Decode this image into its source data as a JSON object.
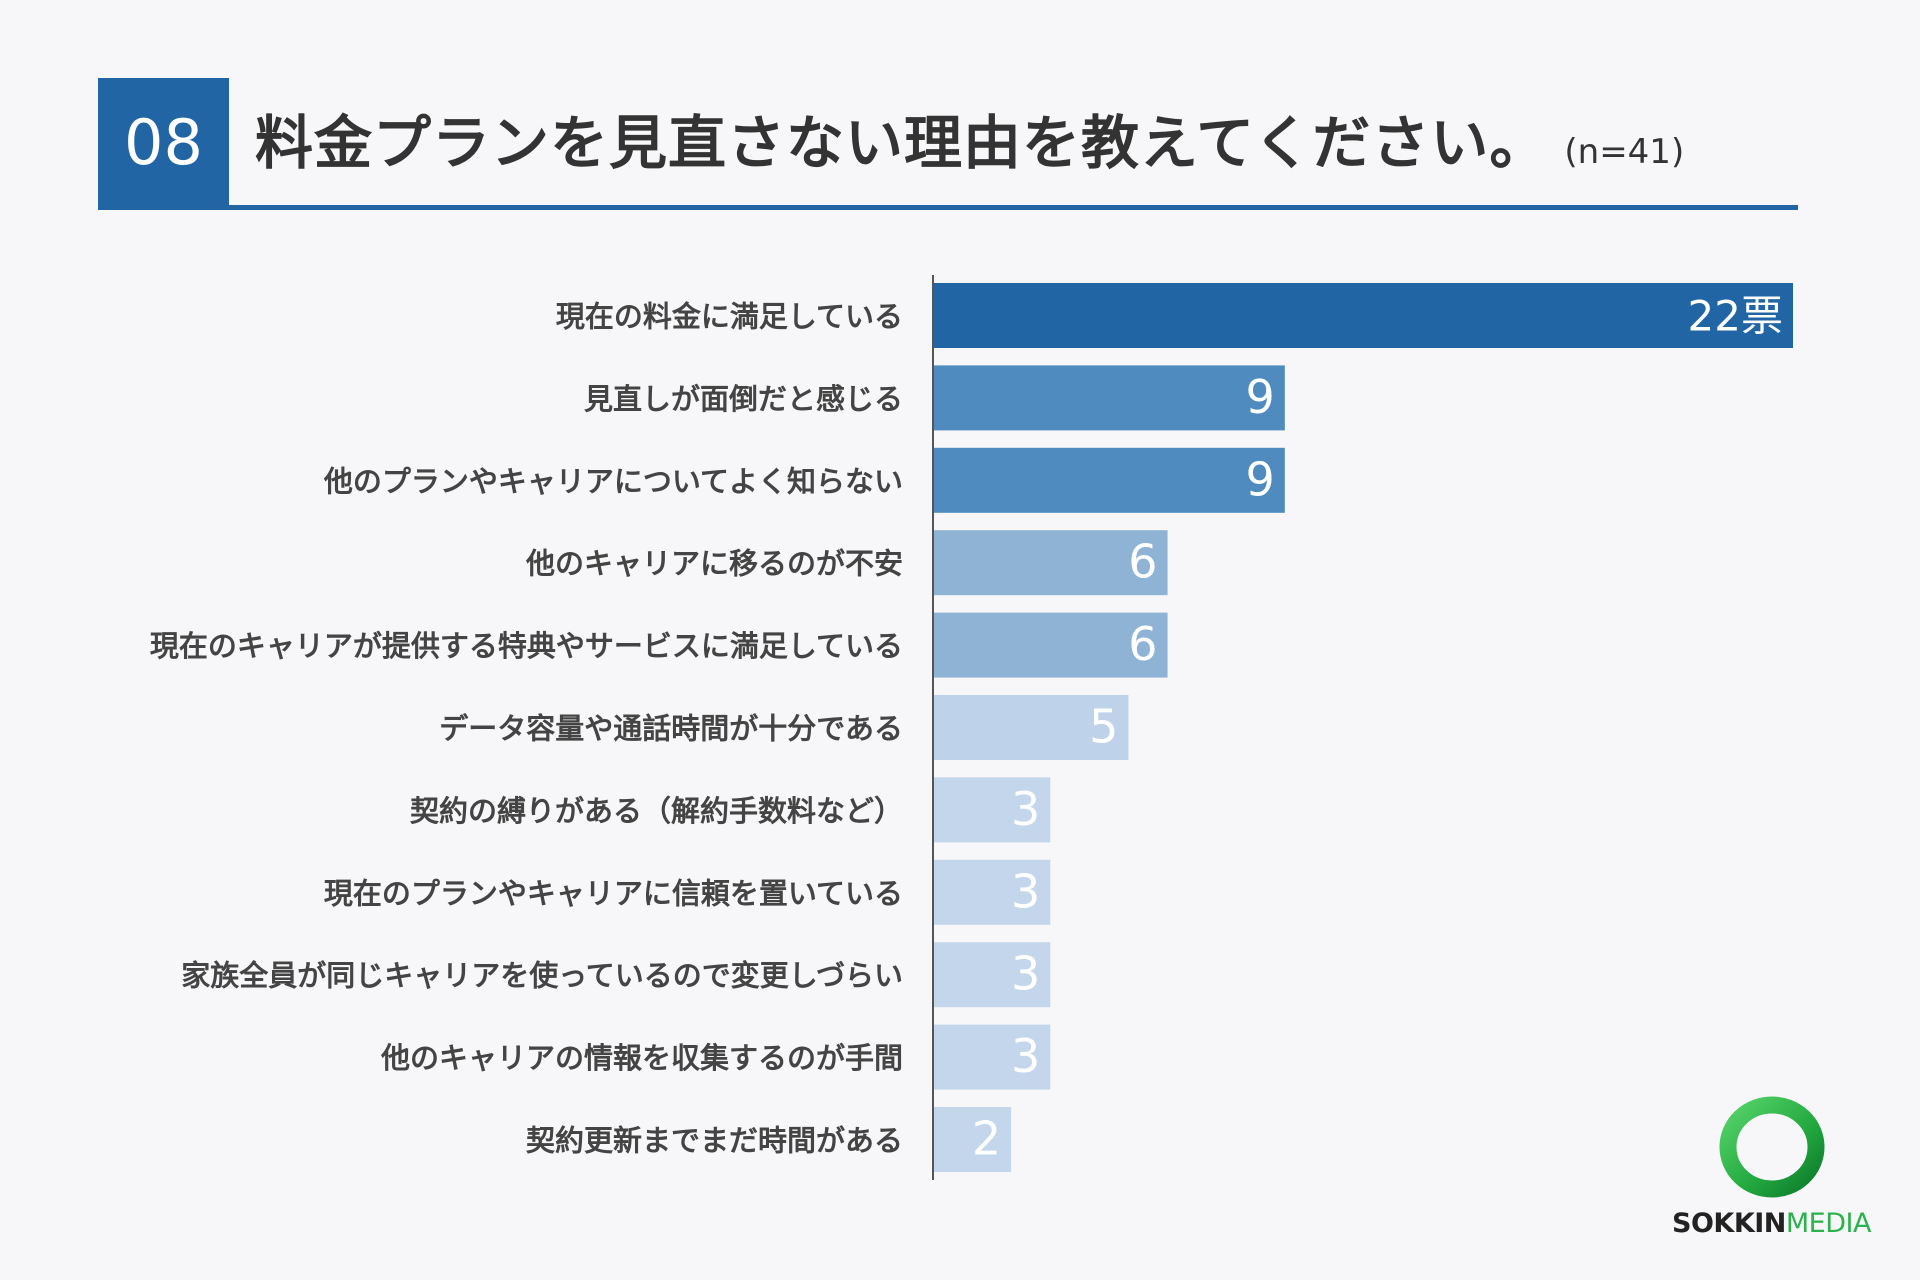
{
  "header": {
    "number": "08",
    "title": "料金プランを見直さない理由を教えてください。",
    "sample": "(n=41)"
  },
  "colors": {
    "accent": "#2165a5",
    "shade_22": "#2165a5",
    "shade_9": "#4f8bbf",
    "shade_6": "#8fb3d5",
    "shade_5": "#bed3ea",
    "shade_low": "#c3d6ec"
  },
  "chart_data": {
    "type": "bar",
    "orientation": "horizontal",
    "categories": [
      "現在の料金に満足している",
      "見直しが面倒だと感じる",
      "他のプランやキャリアについてよく知らない",
      "他のキャリアに移るのが不安",
      "現在のキャリアが提供する特典やサービスに満足している",
      "データ容量や通話時間が十分である",
      "契約の縛りがある（解約手数料など）",
      "現在のプランやキャリアに信頼を置いている",
      "家族全員が同じキャリアを使っているので変更しづらい",
      "他のキャリアの情報を収集するのが手間",
      "契約更新までまだ時間がある"
    ],
    "values": [
      22,
      9,
      9,
      6,
      6,
      5,
      3,
      3,
      3,
      3,
      2
    ],
    "value_labels": [
      "22票",
      "9",
      "9",
      "6",
      "6",
      "5",
      "3",
      "3",
      "3",
      "3",
      "2"
    ],
    "xlim": [
      0,
      22
    ],
    "grid": false,
    "legend": "none"
  },
  "logo": {
    "brand_a": "SOKKIN",
    "brand_b": "MEDIA",
    "ring_color": "#2bb24c"
  }
}
